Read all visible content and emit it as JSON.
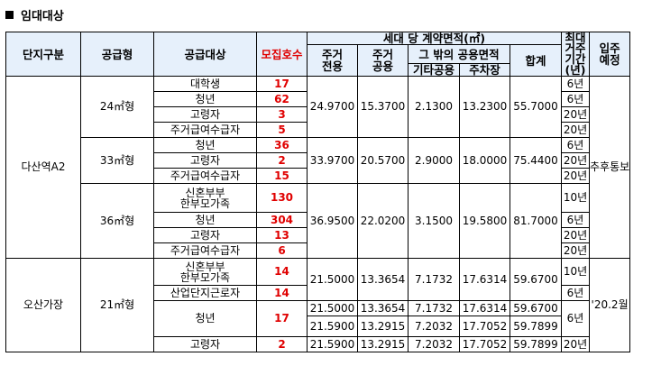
{
  "section_title": "임대대상",
  "headers": {
    "complex": "단지구분",
    "type": "공급형",
    "target": "공급대상",
    "units": "모집호수",
    "area_group": "세대 당 계약면적(㎡)",
    "private_1": "주거",
    "private_2": "전용",
    "common_1": "주거",
    "common_2": "공용",
    "other_common_group": "그 밖의 공용면적",
    "other_common": "기타공용",
    "parking": "주차장",
    "total": "합계",
    "max_period_1": "최대",
    "max_period_2": "거주",
    "max_period_3": "기간",
    "max_period_4": "(년)",
    "move_in_1": "입주",
    "move_in_2": "예정"
  },
  "groups": [
    {
      "complex": "다산역A2",
      "move_in": "추후통보",
      "types": [
        {
          "type": "24㎡형",
          "area": {
            "private": "24.9700",
            "common": "15.3700",
            "other": "2.1300",
            "parking": "13.2300",
            "total": "55.7000"
          },
          "rows": [
            {
              "target": "대학생",
              "units": "17",
              "period": "6년"
            },
            {
              "target": "청년",
              "units": "62",
              "period": "6년"
            },
            {
              "target": "고령자",
              "units": "3",
              "period": "20년"
            },
            {
              "target": "주거급여수급자",
              "units": "5",
              "period": "20년"
            }
          ]
        },
        {
          "type": "33㎡형",
          "area": {
            "private": "33.9700",
            "common": "20.5700",
            "other": "2.9000",
            "parking": "18.0000",
            "total": "75.4400"
          },
          "rows": [
            {
              "target": "청년",
              "units": "36",
              "period": "6년"
            },
            {
              "target": "고령자",
              "units": "2",
              "period": "20년"
            },
            {
              "target": "주거급여수급자",
              "units": "15",
              "period": "20년"
            }
          ]
        },
        {
          "type": "36㎡형",
          "area": {
            "private": "36.9500",
            "common": "22.0200",
            "other": "3.1500",
            "parking": "19.5800",
            "total": "81.7000"
          },
          "rows": [
            {
              "target": "신혼부부",
              "target2": "한부모가족",
              "units": "130",
              "period": "10년"
            },
            {
              "target": "청년",
              "units": "304",
              "period": "6년"
            },
            {
              "target": "고령자",
              "units": "13",
              "period": "20년"
            },
            {
              "target": "주거급여수급자",
              "units": "6",
              "period": "20년"
            }
          ]
        }
      ]
    },
    {
      "complex": "오산가장",
      "move_in": "'20.2월",
      "types": [
        {
          "type": "21㎡형",
          "rows": [
            {
              "target": "신혼부부",
              "target2": "한부모가족",
              "units": "14",
              "private": "21.5000",
              "common": "13.3654",
              "other": "7.1732",
              "parking": "17.6314",
              "total": "59.6700",
              "period": "10년"
            },
            {
              "target": "산업단지근로자",
              "units": "14",
              "period": "6년"
            },
            {
              "target": "청년",
              "units": "17",
              "period": "6년",
              "sub": [
                {
                  "private": "21.5000",
                  "common": "13.3654",
                  "other": "7.1732",
                  "parking": "17.6314",
                  "total": "59.6700"
                },
                {
                  "private": "21.5900",
                  "common": "13.2915",
                  "other": "7.2032",
                  "parking": "17.7052",
                  "total": "59.7899"
                }
              ]
            },
            {
              "target": "고령자",
              "units": "2",
              "private": "21.5900",
              "common": "13.2915",
              "other": "7.2032",
              "parking": "17.7052",
              "total": "59.7899",
              "period": "20년"
            }
          ]
        }
      ]
    }
  ]
}
